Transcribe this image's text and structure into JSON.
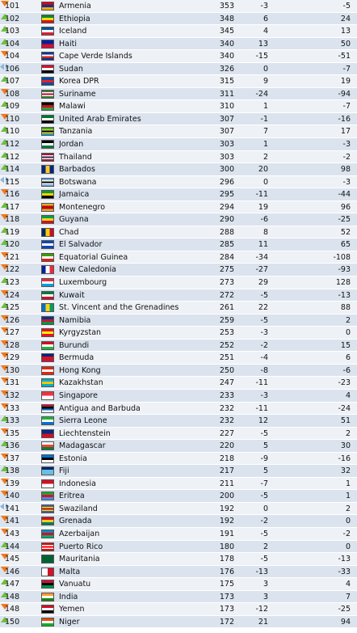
{
  "rows": [
    {
      "rank": "101",
      "name": "Armenia",
      "points": "353",
      "change": "-3",
      "trend": "down",
      "prev": "-5",
      "colors": [
        "#d90012",
        "#0033a0",
        "#f2a800"
      ],
      "dir": "h"
    },
    {
      "rank": "102",
      "name": "Ethiopia",
      "points": "348",
      "change": "6",
      "trend": "up",
      "prev": "24",
      "colors": [
        "#078930",
        "#fcdd09",
        "#da121a"
      ],
      "dir": "h"
    },
    {
      "rank": "103",
      "name": "Iceland",
      "points": "345",
      "change": "4",
      "trend": "up",
      "prev": "13",
      "colors": [
        "#02529c",
        "#ffffff",
        "#dc1e35"
      ],
      "dir": "h"
    },
    {
      "rank": "104",
      "name": "Haiti",
      "points": "340",
      "change": "13",
      "trend": "up",
      "prev": "50",
      "colors": [
        "#00209f",
        "#d21034"
      ],
      "dir": "h"
    },
    {
      "rank": "104",
      "name": "Cape Verde Islands",
      "points": "340",
      "change": "-15",
      "trend": "down",
      "prev": "-51",
      "colors": [
        "#003893",
        "#ffffff",
        "#cf2027",
        "#003893"
      ],
      "dir": "h"
    },
    {
      "rank": "106",
      "name": "Sudan",
      "points": "326",
      "change": "0",
      "trend": "same",
      "prev": "-7",
      "colors": [
        "#d21034",
        "#ffffff",
        "#000000"
      ],
      "dir": "h"
    },
    {
      "rank": "107",
      "name": "Korea DPR",
      "points": "315",
      "change": "9",
      "trend": "up",
      "prev": "19",
      "colors": [
        "#024fa2",
        "#ed1c27",
        "#024fa2"
      ],
      "dir": "h"
    },
    {
      "rank": "108",
      "name": "Suriname",
      "points": "311",
      "change": "-24",
      "trend": "down",
      "prev": "-94",
      "colors": [
        "#377e3f",
        "#ffffff",
        "#b40a2d",
        "#ffffff",
        "#377e3f"
      ],
      "dir": "h"
    },
    {
      "rank": "109",
      "name": "Malawi",
      "points": "310",
      "change": "1",
      "trend": "up",
      "prev": "-7",
      "colors": [
        "#000000",
        "#ce1126",
        "#339e35"
      ],
      "dir": "h"
    },
    {
      "rank": "110",
      "name": "United Arab Emirates",
      "points": "307",
      "change": "-1",
      "trend": "down",
      "prev": "-16",
      "colors": [
        "#00732f",
        "#ffffff",
        "#000000"
      ],
      "dir": "h"
    },
    {
      "rank": "110",
      "name": "Tanzania",
      "points": "307",
      "change": "7",
      "trend": "up",
      "prev": "17",
      "colors": [
        "#1eb53a",
        "#fcd116",
        "#000000",
        "#fcd116",
        "#00a3dd"
      ],
      "dir": "h"
    },
    {
      "rank": "112",
      "name": "Jordan",
      "points": "303",
      "change": "1",
      "trend": "up",
      "prev": "-3",
      "colors": [
        "#000000",
        "#ffffff",
        "#007a3d"
      ],
      "dir": "h"
    },
    {
      "rank": "112",
      "name": "Thailand",
      "points": "303",
      "change": "2",
      "trend": "up",
      "prev": "-2",
      "colors": [
        "#a51931",
        "#f4f5f8",
        "#2d2a4a",
        "#f4f5f8",
        "#a51931"
      ],
      "dir": "h"
    },
    {
      "rank": "114",
      "name": "Barbados",
      "points": "300",
      "change": "20",
      "trend": "up",
      "prev": "98",
      "colors": [
        "#00267f",
        "#ffc726",
        "#00267f"
      ],
      "dir": "v"
    },
    {
      "rank": "115",
      "name": "Botswana",
      "points": "296",
      "change": "0",
      "trend": "same",
      "prev": "-3",
      "colors": [
        "#75aadb",
        "#ffffff",
        "#000000",
        "#ffffff",
        "#75aadb"
      ],
      "dir": "h"
    },
    {
      "rank": "116",
      "name": "Jamaica",
      "points": "295",
      "change": "-11",
      "trend": "down",
      "prev": "-44",
      "colors": [
        "#009b3a",
        "#fed100",
        "#000000"
      ],
      "dir": "h"
    },
    {
      "rank": "117",
      "name": "Montenegro",
      "points": "294",
      "change": "19",
      "trend": "up",
      "prev": "96",
      "colors": [
        "#d4af37",
        "#c40308",
        "#c40308",
        "#d4af37"
      ],
      "dir": "h"
    },
    {
      "rank": "118",
      "name": "Guyana",
      "points": "290",
      "change": "-6",
      "trend": "down",
      "prev": "-25",
      "colors": [
        "#009e49",
        "#fcd116",
        "#ce1126"
      ],
      "dir": "h"
    },
    {
      "rank": "119",
      "name": "Chad",
      "points": "288",
      "change": "8",
      "trend": "up",
      "prev": "52",
      "colors": [
        "#002664",
        "#fecb00",
        "#c60c30"
      ],
      "dir": "v"
    },
    {
      "rank": "120",
      "name": "El Salvador",
      "points": "285",
      "change": "11",
      "trend": "up",
      "prev": "65",
      "colors": [
        "#0f47af",
        "#ffffff",
        "#0f47af"
      ],
      "dir": "h"
    },
    {
      "rank": "121",
      "name": "Equatorial Guinea",
      "points": "284",
      "change": "-34",
      "trend": "down",
      "prev": "-108",
      "colors": [
        "#3e9a00",
        "#ffffff",
        "#e32118"
      ],
      "dir": "h"
    },
    {
      "rank": "122",
      "name": "New Caledonia",
      "points": "275",
      "change": "-27",
      "trend": "down",
      "prev": "-93",
      "colors": [
        "#002395",
        "#ffffff",
        "#ed2939"
      ],
      "dir": "v"
    },
    {
      "rank": "123",
      "name": "Luxembourg",
      "points": "273",
      "change": "29",
      "trend": "up",
      "prev": "128",
      "colors": [
        "#ed2939",
        "#ffffff",
        "#00a1de"
      ],
      "dir": "h"
    },
    {
      "rank": "124",
      "name": "Kuwait",
      "points": "272",
      "change": "-5",
      "trend": "down",
      "prev": "-13",
      "colors": [
        "#007a3d",
        "#ffffff",
        "#ce1126"
      ],
      "dir": "h"
    },
    {
      "rank": "125",
      "name": "St. Vincent and the Grenadines",
      "points": "261",
      "change": "22",
      "trend": "up",
      "prev": "88",
      "colors": [
        "#0072c6",
        "#fcd116",
        "#009e60"
      ],
      "dir": "v"
    },
    {
      "rank": "126",
      "name": "Namibia",
      "points": "259",
      "change": "-5",
      "trend": "down",
      "prev": "2",
      "colors": [
        "#003580",
        "#d21034",
        "#009543"
      ],
      "dir": "h"
    },
    {
      "rank": "127",
      "name": "Kyrgyzstan",
      "points": "253",
      "change": "-3",
      "trend": "down",
      "prev": "0",
      "colors": [
        "#e8112d",
        "#ffef00",
        "#e8112d"
      ],
      "dir": "h"
    },
    {
      "rank": "128",
      "name": "Burundi",
      "points": "252",
      "change": "-2",
      "trend": "down",
      "prev": "15",
      "colors": [
        "#ce1126",
        "#ffffff",
        "#1eb53a"
      ],
      "dir": "h"
    },
    {
      "rank": "129",
      "name": "Bermuda",
      "points": "251",
      "change": "-4",
      "trend": "down",
      "prev": "6",
      "colors": [
        "#00247d",
        "#cf142b",
        "#cf142b"
      ],
      "dir": "h"
    },
    {
      "rank": "130",
      "name": "Hong Kong",
      "points": "250",
      "change": "-8",
      "trend": "down",
      "prev": "-6",
      "colors": [
        "#de2910",
        "#ffffff",
        "#de2910"
      ],
      "dir": "h"
    },
    {
      "rank": "131",
      "name": "Kazakhstan",
      "points": "247",
      "change": "-11",
      "trend": "down",
      "prev": "-23",
      "colors": [
        "#00afca",
        "#fec50c",
        "#00afca"
      ],
      "dir": "h"
    },
    {
      "rank": "132",
      "name": "Singapore",
      "points": "233",
      "change": "-3",
      "trend": "down",
      "prev": "4",
      "colors": [
        "#ef3340",
        "#ffffff"
      ],
      "dir": "h"
    },
    {
      "rank": "133",
      "name": "Antigua and Barbuda",
      "points": "232",
      "change": "-11",
      "trend": "down",
      "prev": "-24",
      "colors": [
        "#ce1126",
        "#000000",
        "#0072c6",
        "#ffffff"
      ],
      "dir": "h"
    },
    {
      "rank": "133",
      "name": "Sierra Leone",
      "points": "232",
      "change": "12",
      "trend": "up",
      "prev": "51",
      "colors": [
        "#1eb53a",
        "#ffffff",
        "#0072c6"
      ],
      "dir": "h"
    },
    {
      "rank": "135",
      "name": "Liechtenstein",
      "points": "227",
      "change": "-5",
      "trend": "down",
      "prev": "2",
      "colors": [
        "#002b7f",
        "#ce1126"
      ],
      "dir": "h"
    },
    {
      "rank": "136",
      "name": "Madagascar",
      "points": "220",
      "change": "5",
      "trend": "up",
      "prev": "30",
      "colors": [
        "#ffffff",
        "#fc3d32",
        "#007e3a"
      ],
      "dir": "h"
    },
    {
      "rank": "137",
      "name": "Estonia",
      "points": "218",
      "change": "-9",
      "trend": "down",
      "prev": "-16",
      "colors": [
        "#0072ce",
        "#000000",
        "#ffffff"
      ],
      "dir": "h"
    },
    {
      "rank": "138",
      "name": "Fiji",
      "points": "217",
      "change": "5",
      "trend": "up",
      "prev": "32",
      "colors": [
        "#002868",
        "#68bfe5",
        "#68bfe5"
      ],
      "dir": "h"
    },
    {
      "rank": "139",
      "name": "Indonesia",
      "points": "211",
      "change": "-7",
      "trend": "down",
      "prev": "1",
      "colors": [
        "#ce1126",
        "#ffffff"
      ],
      "dir": "h"
    },
    {
      "rank": "140",
      "name": "Eritrea",
      "points": "200",
      "change": "-5",
      "trend": "down",
      "prev": "1",
      "colors": [
        "#12ad2b",
        "#ea0437",
        "#418fde"
      ],
      "dir": "h"
    },
    {
      "rank": "141",
      "name": "Swaziland",
      "points": "192",
      "change": "0",
      "trend": "same",
      "prev": "2",
      "colors": [
        "#3e5eb9",
        "#ffd900",
        "#b10c0c",
        "#ffd900",
        "#3e5eb9"
      ],
      "dir": "h"
    },
    {
      "rank": "141",
      "name": "Grenada",
      "points": "192",
      "change": "-2",
      "trend": "down",
      "prev": "0",
      "colors": [
        "#ce1126",
        "#fcd116",
        "#007a5e"
      ],
      "dir": "h"
    },
    {
      "rank": "143",
      "name": "Azerbaijan",
      "points": "191",
      "change": "-5",
      "trend": "down",
      "prev": "-2",
      "colors": [
        "#0092bc",
        "#e4002b",
        "#00af66"
      ],
      "dir": "h"
    },
    {
      "rank": "144",
      "name": "Puerto Rico",
      "points": "180",
      "change": "2",
      "trend": "up",
      "prev": "0",
      "colors": [
        "#ed0000",
        "#ffffff",
        "#ed0000",
        "#ffffff",
        "#ed0000"
      ],
      "dir": "h"
    },
    {
      "rank": "145",
      "name": "Mauritania",
      "points": "178",
      "change": "-5",
      "trend": "down",
      "prev": "-13",
      "colors": [
        "#006233",
        "#006233",
        "#006233"
      ],
      "dir": "h"
    },
    {
      "rank": "146",
      "name": "Malta",
      "points": "176",
      "change": "-13",
      "trend": "down",
      "prev": "-33",
      "colors": [
        "#ffffff",
        "#cf142b"
      ],
      "dir": "v"
    },
    {
      "rank": "147",
      "name": "Vanuatu",
      "points": "175",
      "change": "3",
      "trend": "up",
      "prev": "4",
      "colors": [
        "#d21034",
        "#000000",
        "#009543"
      ],
      "dir": "h"
    },
    {
      "rank": "148",
      "name": "India",
      "points": "173",
      "change": "3",
      "trend": "up",
      "prev": "7",
      "colors": [
        "#ff9933",
        "#ffffff",
        "#138808"
      ],
      "dir": "h"
    },
    {
      "rank": "148",
      "name": "Yemen",
      "points": "173",
      "change": "-12",
      "trend": "down",
      "prev": "-25",
      "colors": [
        "#ce1126",
        "#ffffff",
        "#000000"
      ],
      "dir": "h"
    },
    {
      "rank": "150",
      "name": "Niger",
      "points": "172",
      "change": "21",
      "trend": "up",
      "prev": "94",
      "colors": [
        "#e05206",
        "#ffffff",
        "#0db02b"
      ],
      "dir": "h"
    }
  ],
  "theme": {
    "up_color": "#6cbf3e",
    "down_color": "#f07a1e",
    "same_color": "#8fb6d6",
    "row_odd": "#eef1f6",
    "row_even": "#dbe3ee"
  }
}
